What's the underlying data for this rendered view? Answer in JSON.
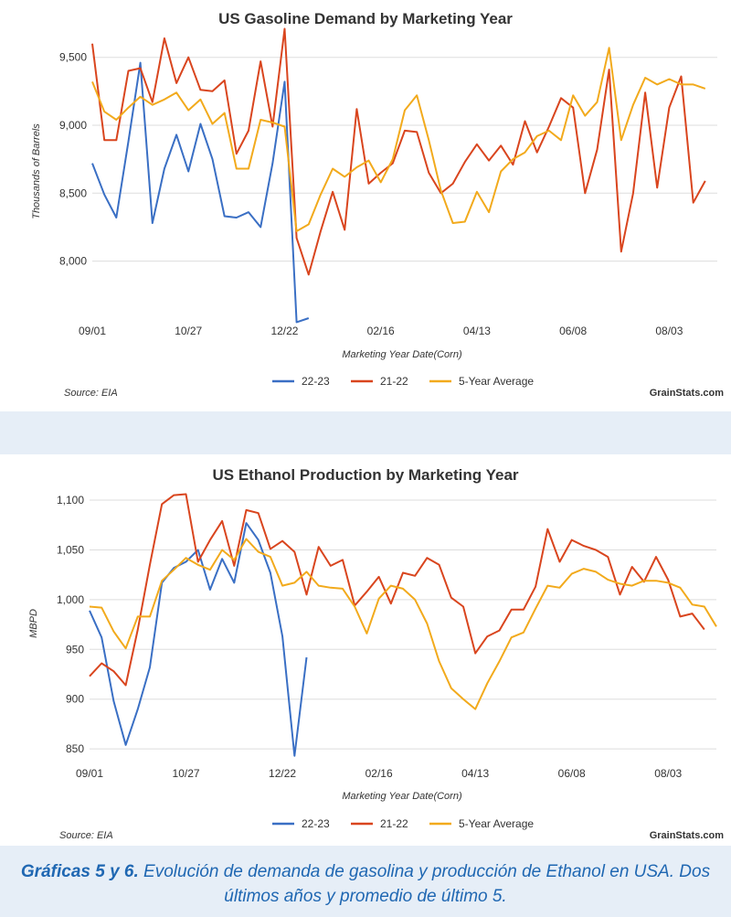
{
  "colors": {
    "s2223": "#3a6fc4",
    "s2122": "#d9451e",
    "s5yr": "#f2aa1c",
    "grid": "#dddddd",
    "caption": "#1f67b2"
  },
  "caption": {
    "bold": "Gráficas 5 y 6.",
    "text": " Evolución de demanda de gasolina y producción de Ethanol en USA. Dos últimos años y promedio de último 5."
  },
  "chart_data": [
    {
      "type": "line",
      "title": "US Gasoline Demand by Marketing Year",
      "xlabel": "Marketing Year Date(Corn)",
      "ylabel": "Thousands of Barrels",
      "source": "Source: EIA",
      "brand": "GrainStats.com",
      "ylim": [
        7600,
        9720
      ],
      "yticks": [
        8000,
        8500,
        9000,
        9500
      ],
      "ytick_labels": [
        "8,000",
        "8,500",
        "9,000",
        "9,500"
      ],
      "xticks": [
        {
          "i": 0,
          "label": "09/01"
        },
        {
          "i": 8,
          "label": "10/27"
        },
        {
          "i": 16,
          "label": "12/22"
        },
        {
          "i": 24,
          "label": "02/16"
        },
        {
          "i": 32,
          "label": "04/13"
        },
        {
          "i": 40,
          "label": "06/08"
        },
        {
          "i": 48,
          "label": "08/03"
        }
      ],
      "n_weeks": 53,
      "grid": true,
      "legend": "bottom",
      "series": [
        {
          "name": "22-23",
          "key": "s2223",
          "values": [
            8720,
            8490,
            8320,
            8880,
            9460,
            8280,
            8680,
            8930,
            8660,
            9010,
            8750,
            8330,
            8320,
            8360,
            8250,
            8720,
            9320,
            7550,
            7580
          ]
        },
        {
          "name": "21-22",
          "key": "s2122",
          "values": [
            9600,
            8890,
            8890,
            9400,
            9420,
            9170,
            9640,
            9310,
            9500,
            9260,
            9250,
            9330,
            8790,
            8960,
            9470,
            8990,
            9710,
            8170,
            7900,
            8220,
            8510,
            8230,
            9120,
            8570,
            8650,
            8720,
            8960,
            8950,
            8650,
            8500,
            8570,
            8730,
            8860,
            8740,
            8850,
            8710,
            9030,
            8800,
            8990,
            9200,
            9130,
            8500,
            8820,
            9410,
            8070,
            8500,
            9240,
            8540,
            9130,
            9360,
            8430,
            8590
          ]
        },
        {
          "name": "5-Year Average",
          "key": "s5yr",
          "values": [
            9320,
            9100,
            9040,
            9130,
            9210,
            9150,
            9190,
            9240,
            9110,
            9190,
            9010,
            9090,
            8680,
            8680,
            9040,
            9020,
            8990,
            8220,
            8270,
            8490,
            8680,
            8620,
            8690,
            8740,
            8580,
            8750,
            9110,
            9220,
            8890,
            8520,
            8280,
            8290,
            8510,
            8360,
            8660,
            8750,
            8800,
            8920,
            8960,
            8890,
            9220,
            9070,
            9170,
            9570,
            8890,
            9150,
            9350,
            9300,
            9340,
            9300,
            9300,
            9270
          ]
        }
      ]
    },
    {
      "type": "line",
      "title": "US Ethanol Production by Marketing Year",
      "xlabel": "Marketing Year Date(Corn)",
      "ylabel": "MBPD",
      "source": "Source: EIA",
      "brand": "GrainStats.com",
      "ylim": [
        840,
        1112
      ],
      "yticks": [
        850,
        900,
        950,
        1000,
        1050,
        1100
      ],
      "ytick_labels": [
        "850",
        "900",
        "950",
        "1,000",
        "1,050",
        "1,100"
      ],
      "xticks": [
        {
          "i": 0,
          "label": "09/01"
        },
        {
          "i": 8,
          "label": "10/27"
        },
        {
          "i": 16,
          "label": "12/22"
        },
        {
          "i": 24,
          "label": "02/16"
        },
        {
          "i": 32,
          "label": "04/13"
        },
        {
          "i": 40,
          "label": "06/08"
        },
        {
          "i": 48,
          "label": "08/03"
        }
      ],
      "n_weeks": 53,
      "grid": true,
      "legend": "bottom",
      "series": [
        {
          "name": "22-23",
          "key": "s2223",
          "values": [
            989,
            962,
            898,
            854,
            890,
            932,
            1017,
            1032,
            1038,
            1050,
            1010,
            1041,
            1017,
            1077,
            1060,
            1027,
            963,
            843,
            942
          ]
        },
        {
          "name": "21-22",
          "key": "s2122",
          "values": [
            923,
            936,
            928,
            914,
            970,
            1035,
            1096,
            1105,
            1106,
            1038,
            1060,
            1079,
            1034,
            1090,
            1087,
            1051,
            1059,
            1048,
            1005,
            1053,
            1034,
            1040,
            994,
            1008,
            1023,
            996,
            1027,
            1024,
            1042,
            1035,
            1002,
            993,
            946,
            963,
            969,
            990,
            990,
            1013,
            1071,
            1038,
            1060,
            1054,
            1050,
            1043,
            1005,
            1033,
            1018,
            1043,
            1020,
            983,
            986,
            970
          ]
        },
        {
          "name": "5-Year Average",
          "key": "s5yr",
          "values": [
            993,
            992,
            968,
            951,
            983,
            983,
            1019,
            1030,
            1042,
            1035,
            1030,
            1050,
            1040,
            1061,
            1048,
            1043,
            1014,
            1017,
            1028,
            1014,
            1012,
            1011,
            993,
            966,
            1001,
            1014,
            1011,
            1000,
            976,
            938,
            911,
            900,
            890,
            916,
            938,
            962,
            967,
            991,
            1014,
            1012,
            1026,
            1031,
            1028,
            1020,
            1016,
            1014,
            1019,
            1019,
            1017,
            1012,
            995,
            993,
            973
          ]
        }
      ]
    }
  ]
}
